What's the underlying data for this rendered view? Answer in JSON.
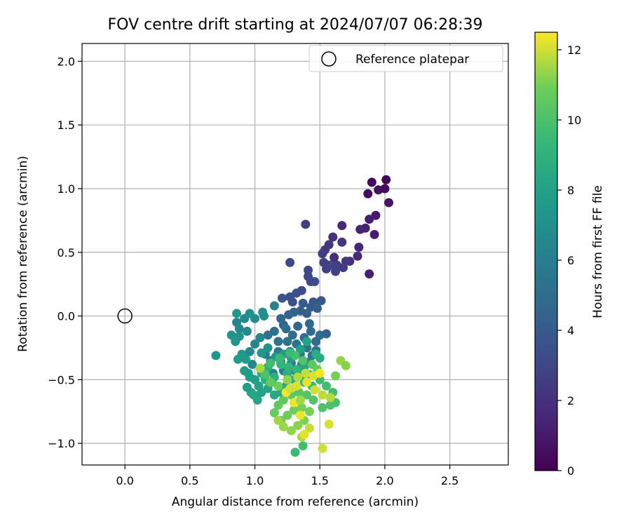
{
  "chart_data": {
    "type": "scatter",
    "title": "FOV centre drift starting at 2024/07/07 06:28:39",
    "xlabel": "Angular distance from reference (arcmin)",
    "ylabel": "Rotation from reference (arcmin)",
    "xlim": [
      -0.33,
      2.95
    ],
    "ylim": [
      -1.17,
      2.14
    ],
    "xticks": [
      0.0,
      0.5,
      1.0,
      1.5,
      2.0,
      2.5
    ],
    "xtick_labels": [
      "0.0",
      "0.5",
      "1.0",
      "1.5",
      "2.0",
      "2.5"
    ],
    "yticks": [
      -1.0,
      -0.5,
      0.0,
      0.5,
      1.0,
      1.5,
      2.0
    ],
    "ytick_labels": [
      "−1.0",
      "−0.5",
      "0.0",
      "0.5",
      "1.0",
      "1.5",
      "2.0"
    ],
    "grid": true,
    "legend": {
      "position": "top-right",
      "entries": [
        "Reference platepar"
      ]
    },
    "colorbar": {
      "label": "Hours from first FF file",
      "colormap": "viridis",
      "range": [
        0,
        12.5
      ],
      "ticks": [
        0,
        2,
        4,
        6,
        8,
        10,
        12
      ],
      "tick_labels": [
        "0",
        "2",
        "4",
        "6",
        "8",
        "10",
        "12"
      ]
    },
    "reference": {
      "name": "Reference platepar",
      "x": 0.0,
      "y": 0.0
    },
    "points": [
      [
        2.01,
        1.07,
        0.2
      ],
      [
        1.9,
        1.05,
        0.3
      ],
      [
        1.87,
        0.96,
        0.4
      ],
      [
        1.95,
        0.99,
        0.6
      ],
      [
        2.0,
        1.0,
        0.5
      ],
      [
        2.03,
        0.89,
        0.8
      ],
      [
        1.93,
        0.79,
        1.0
      ],
      [
        1.88,
        0.76,
        1.2
      ],
      [
        1.85,
        0.69,
        1.3
      ],
      [
        1.81,
        0.68,
        1.4
      ],
      [
        1.92,
        0.64,
        1.1
      ],
      [
        1.8,
        0.54,
        1.5
      ],
      [
        1.79,
        0.47,
        1.6
      ],
      [
        1.67,
        0.71,
        1.7
      ],
      [
        1.6,
        0.62,
        2.0
      ],
      [
        1.61,
        0.46,
        1.8
      ],
      [
        1.73,
        0.43,
        1.9
      ],
      [
        1.67,
        0.58,
        2.2
      ],
      [
        1.57,
        0.56,
        2.3
      ],
      [
        1.54,
        0.52,
        2.4
      ],
      [
        1.52,
        0.49,
        2.5
      ],
      [
        1.88,
        0.33,
        1.3
      ],
      [
        1.39,
        0.72,
        2.6
      ],
      [
        1.7,
        0.43,
        2.4
      ],
      [
        1.68,
        0.38,
        2.5
      ],
      [
        1.63,
        0.4,
        2.6
      ],
      [
        1.55,
        0.37,
        2.7
      ],
      [
        1.62,
        0.35,
        2.8
      ],
      [
        1.53,
        0.42,
        2.8
      ],
      [
        1.58,
        0.4,
        2.9
      ],
      [
        1.41,
        0.36,
        3.0
      ],
      [
        1.41,
        0.31,
        3.1
      ],
      [
        1.43,
        0.27,
        3.2
      ],
      [
        1.46,
        0.27,
        3.3
      ],
      [
        1.27,
        0.42,
        3.1
      ],
      [
        1.36,
        0.2,
        3.3
      ],
      [
        1.32,
        0.18,
        3.5
      ],
      [
        1.27,
        0.15,
        3.4
      ],
      [
        1.29,
        0.11,
        3.6
      ],
      [
        1.21,
        0.14,
        3.7
      ],
      [
        1.45,
        0.11,
        3.8
      ],
      [
        1.51,
        0.12,
        3.9
      ],
      [
        1.37,
        0.1,
        4.0
      ],
      [
        1.43,
        0.07,
        4.1
      ],
      [
        1.48,
        0.06,
        4.2
      ],
      [
        1.35,
        0.04,
        4.2
      ],
      [
        1.4,
        0.02,
        4.3
      ],
      [
        1.3,
        0.03,
        4.4
      ],
      [
        1.26,
        0.01,
        4.5
      ],
      [
        1.2,
        -0.02,
        4.6
      ],
      [
        1.22,
        -0.07,
        4.5
      ],
      [
        1.33,
        -0.08,
        4.6
      ],
      [
        1.42,
        -0.06,
        4.7
      ],
      [
        1.43,
        -0.12,
        4.8
      ],
      [
        1.5,
        -0.15,
        4.9
      ],
      [
        1.55,
        -0.14,
        4.5
      ],
      [
        1.47,
        -0.2,
        4.8
      ],
      [
        1.38,
        -0.17,
        5.0
      ],
      [
        1.29,
        -0.15,
        5.1
      ],
      [
        1.24,
        -0.1,
        5.0
      ],
      [
        1.15,
        -0.12,
        5.2
      ],
      [
        1.1,
        -0.15,
        5.3
      ],
      [
        1.18,
        -0.2,
        5.3
      ],
      [
        1.25,
        -0.2,
        5.4
      ],
      [
        1.32,
        -0.22,
        5.2
      ],
      [
        1.4,
        -0.25,
        5.4
      ],
      [
        1.47,
        -0.27,
        5.5
      ],
      [
        1.44,
        -0.31,
        5.5
      ],
      [
        1.35,
        -0.3,
        5.6
      ],
      [
        1.27,
        -0.28,
        5.7
      ],
      [
        1.18,
        -0.28,
        5.6
      ],
      [
        1.08,
        -0.3,
        5.8
      ],
      [
        1.12,
        -0.35,
        5.9
      ],
      [
        1.2,
        -0.36,
        5.9
      ],
      [
        1.28,
        -0.37,
        6.0
      ],
      [
        1.36,
        -0.38,
        6.1
      ],
      [
        1.42,
        -0.36,
        6.0
      ],
      [
        1.31,
        -0.43,
        6.2
      ],
      [
        1.22,
        -0.43,
        6.3
      ],
      [
        1.14,
        -0.45,
        6.3
      ],
      [
        1.06,
        -0.42,
        6.4
      ],
      [
        0.98,
        -0.38,
        6.5
      ],
      [
        0.96,
        -0.28,
        6.6
      ],
      [
        1.0,
        -0.22,
        6.4
      ],
      [
        1.04,
        -0.17,
        6.5
      ],
      [
        0.94,
        -0.12,
        6.7
      ],
      [
        0.88,
        -0.1,
        6.6
      ],
      [
        0.86,
        -0.05,
        6.5
      ],
      [
        0.92,
        -0.02,
        6.7
      ],
      [
        1.0,
        -0.02,
        6.8
      ],
      [
        1.07,
        0.0,
        6.9
      ],
      [
        1.15,
        0.08,
        6.3
      ],
      [
        1.06,
        0.03,
        7.0
      ],
      [
        0.96,
        0.02,
        7.1
      ],
      [
        0.86,
        0.02,
        7.5
      ],
      [
        0.88,
        -0.16,
        7.2
      ],
      [
        0.82,
        -0.15,
        7.3
      ],
      [
        0.85,
        -0.2,
        7.4
      ],
      [
        0.9,
        -0.3,
        7.5
      ],
      [
        0.93,
        -0.34,
        7.6
      ],
      [
        0.95,
        -0.45,
        7.6
      ],
      [
        0.92,
        -0.43,
        7.7
      ],
      [
        0.96,
        -0.48,
        7.8
      ],
      [
        0.94,
        -0.56,
        7.9
      ],
      [
        0.97,
        -0.6,
        8.0
      ],
      [
        1.0,
        -0.5,
        7.9
      ],
      [
        1.03,
        -0.55,
        8.0
      ],
      [
        1.05,
        -0.6,
        8.1
      ],
      [
        1.1,
        -0.57,
        8.2
      ],
      [
        1.13,
        -0.52,
        8.2
      ],
      [
        1.02,
        -0.66,
        8.3
      ],
      [
        0.99,
        -0.62,
        8.3
      ],
      [
        1.15,
        -0.62,
        8.4
      ],
      [
        1.2,
        -0.6,
        8.5
      ],
      [
        1.24,
        -0.55,
        8.6
      ],
      [
        1.3,
        -0.5,
        8.6
      ],
      [
        1.36,
        -0.46,
        8.7
      ],
      [
        1.42,
        -0.46,
        8.8
      ],
      [
        0.7,
        -0.31,
        7.4
      ],
      [
        0.87,
        -0.34,
        7.7
      ],
      [
        1.05,
        -0.29,
        7.5
      ],
      [
        1.1,
        -0.25,
        7.3
      ],
      [
        1.16,
        -0.32,
        7.6
      ],
      [
        1.22,
        -0.3,
        7.7
      ],
      [
        1.28,
        -0.33,
        7.9
      ],
      [
        1.35,
        -0.26,
        8.0
      ],
      [
        1.4,
        -0.2,
        8.2
      ],
      [
        1.38,
        -0.4,
        8.3
      ],
      [
        1.44,
        -0.38,
        8.5
      ],
      [
        1.5,
        -0.33,
        8.6
      ],
      [
        1.47,
        -0.3,
        8.8
      ],
      [
        1.25,
        -0.45,
        8.8
      ],
      [
        1.15,
        -0.48,
        8.9
      ],
      [
        1.08,
        -0.5,
        8.9
      ],
      [
        1.05,
        -0.45,
        9.0
      ],
      [
        1.1,
        -0.4,
        9.1
      ],
      [
        1.2,
        -0.38,
        9.2
      ],
      [
        1.26,
        -0.4,
        9.3
      ],
      [
        1.32,
        -0.42,
        9.3
      ],
      [
        1.38,
        -0.52,
        9.4
      ],
      [
        1.44,
        -0.55,
        9.5
      ],
      [
        1.5,
        -0.5,
        9.6
      ],
      [
        1.55,
        -0.55,
        9.7
      ],
      [
        1.6,
        -0.6,
        9.8
      ],
      [
        1.62,
        -0.68,
        9.9
      ],
      [
        1.58,
        -0.7,
        10.0
      ],
      [
        1.52,
        -0.72,
        10.1
      ],
      [
        1.45,
        -0.66,
        10.2
      ],
      [
        1.4,
        -0.62,
        10.3
      ],
      [
        1.34,
        -0.6,
        10.4
      ],
      [
        1.28,
        -0.62,
        10.5
      ],
      [
        1.22,
        -0.66,
        10.5
      ],
      [
        1.18,
        -0.7,
        10.6
      ],
      [
        1.15,
        -0.76,
        10.7
      ],
      [
        1.2,
        -0.82,
        10.8
      ],
      [
        1.25,
        -0.78,
        10.8
      ],
      [
        1.3,
        -0.74,
        10.9
      ],
      [
        1.36,
        -0.72,
        11.0
      ],
      [
        1.42,
        -0.75,
        11.0
      ],
      [
        1.38,
        -0.82,
        11.1
      ],
      [
        1.33,
        -0.86,
        11.2
      ],
      [
        1.28,
        -0.9,
        11.3
      ],
      [
        1.22,
        -0.87,
        11.4
      ],
      [
        1.18,
        -0.82,
        11.5
      ],
      [
        1.36,
        -0.95,
        11.6
      ],
      [
        1.31,
        -1.07,
        9.6
      ],
      [
        1.37,
        -1.02,
        9.8
      ],
      [
        1.52,
        -1.04,
        12.0
      ],
      [
        1.57,
        -0.85,
        12.1
      ],
      [
        1.42,
        -0.88,
        11.9
      ],
      [
        1.38,
        -0.93,
        12.2
      ],
      [
        1.35,
        -0.78,
        12.3
      ],
      [
        1.3,
        -0.68,
        12.3
      ],
      [
        1.24,
        -0.6,
        12.4
      ],
      [
        1.32,
        -0.55,
        12.1
      ],
      [
        1.4,
        -0.52,
        12.2
      ],
      [
        1.46,
        -0.58,
        12.0
      ],
      [
        1.52,
        -0.62,
        11.8
      ],
      [
        1.58,
        -0.64,
        11.7
      ],
      [
        1.66,
        -0.35,
        11.4
      ],
      [
        1.7,
        -0.39,
        11.2
      ],
      [
        1.62,
        -0.47,
        11.0
      ],
      [
        1.48,
        -0.42,
        10.7
      ],
      [
        1.44,
        -0.38,
        10.5
      ],
      [
        1.37,
        -0.35,
        10.2
      ],
      [
        1.31,
        -0.31,
        9.9
      ],
      [
        1.27,
        -0.29,
        9.6
      ],
      [
        1.19,
        -0.33,
        9.5
      ],
      [
        1.12,
        -0.37,
        9.7
      ],
      [
        1.08,
        -0.46,
        10.0
      ],
      [
        1.04,
        -0.41,
        11.6
      ],
      [
        1.12,
        -0.52,
        10.6
      ],
      [
        1.18,
        -0.55,
        10.9
      ],
      [
        1.25,
        -0.5,
        11.3
      ],
      [
        1.33,
        -0.48,
        11.7
      ],
      [
        1.39,
        -0.45,
        11.9
      ],
      [
        1.45,
        -0.47,
        12.1
      ],
      [
        1.5,
        -0.45,
        12.4
      ],
      [
        1.27,
        -0.57,
        12.0
      ],
      [
        1.35,
        -0.66,
        11.5
      ]
    ]
  }
}
